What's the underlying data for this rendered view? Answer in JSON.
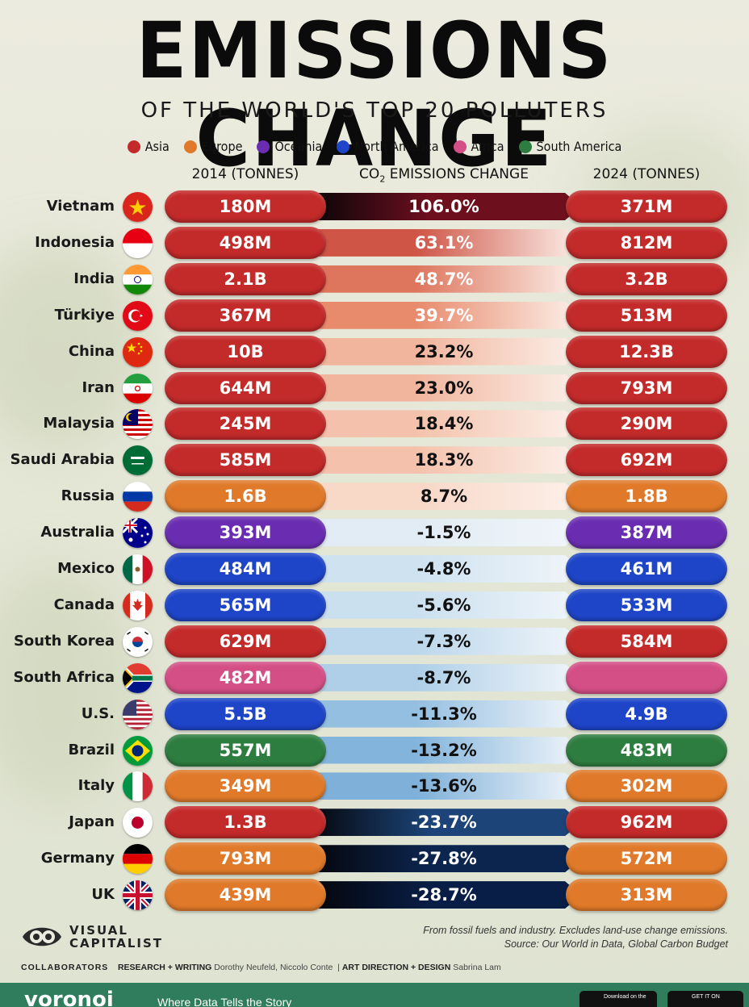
{
  "title": "EMISSIONS CHANGE",
  "subtitle": "OF THE WORLD'S TOP 20 POLLUTERS",
  "legend": [
    {
      "label": "Asia",
      "color": "#c32a2a"
    },
    {
      "label": "Europe",
      "color": "#e07a2a"
    },
    {
      "label": "Oceania",
      "color": "#6a2db1"
    },
    {
      "label": "North America",
      "color": "#1e45c8"
    },
    {
      "label": "Africa",
      "color": "#d44f86"
    },
    {
      "label": "South America",
      "color": "#2e7d40"
    }
  ],
  "headers": {
    "left": "2014 (TONNES)",
    "center_prefix": "CO",
    "center_sub": "2",
    "center_suffix": " EMISSIONS CHANGE",
    "right": "2024 (TONNES)"
  },
  "chart_data": {
    "type": "table",
    "columns": [
      "Country",
      "2014 (TONNES)",
      "CO2 EMISSIONS CHANGE",
      "2024 (TONNES)"
    ],
    "rows": [
      {
        "country": "Vietnam",
        "region": "Asia",
        "e2014": "180M",
        "change": "106.0%",
        "change_value": 106.0,
        "e2024": "371M"
      },
      {
        "country": "Indonesia",
        "region": "Asia",
        "e2014": "498M",
        "change": "63.1%",
        "change_value": 63.1,
        "e2024": "812M"
      },
      {
        "country": "India",
        "region": "Asia",
        "e2014": "2.1B",
        "change": "48.7%",
        "change_value": 48.7,
        "e2024": "3.2B"
      },
      {
        "country": "Türkiye",
        "region": "Asia",
        "e2014": "367M",
        "change": "39.7%",
        "change_value": 39.7,
        "e2024": "513M"
      },
      {
        "country": "China",
        "region": "Asia",
        "e2014": "10B",
        "change": "23.2%",
        "change_value": 23.2,
        "e2024": "12.3B"
      },
      {
        "country": "Iran",
        "region": "Asia",
        "e2014": "644M",
        "change": "23.0%",
        "change_value": 23.0,
        "e2024": "793M"
      },
      {
        "country": "Malaysia",
        "region": "Asia",
        "e2014": "245M",
        "change": "18.4%",
        "change_value": 18.4,
        "e2024": "290M"
      },
      {
        "country": "Saudi Arabia",
        "region": "Asia",
        "e2014": "585M",
        "change": "18.3%",
        "change_value": 18.3,
        "e2024": "692M"
      },
      {
        "country": "Russia",
        "region": "Europe",
        "e2014": "1.6B",
        "change": "8.7%",
        "change_value": 8.7,
        "e2024": "1.8B"
      },
      {
        "country": "Australia",
        "region": "Oceania",
        "e2014": "393M",
        "change": "-1.5%",
        "change_value": -1.5,
        "e2024": "387M"
      },
      {
        "country": "Mexico",
        "region": "North America",
        "e2014": "484M",
        "change": "-4.8%",
        "change_value": -4.8,
        "e2024": "461M"
      },
      {
        "country": "Canada",
        "region": "North America",
        "e2014": "565M",
        "change": "-5.6%",
        "change_value": -5.6,
        "e2024": "533M"
      },
      {
        "country": "South Korea",
        "region": "Asia",
        "e2014": "629M",
        "change": "-7.3%",
        "change_value": -7.3,
        "e2024": "584M"
      },
      {
        "country": "South Africa",
        "region": "Africa",
        "e2014": "482M",
        "change": "-8.7%",
        "change_value": -8.7,
        "e2024": ""
      },
      {
        "country": "U.S.",
        "region": "North America",
        "e2014": "5.5B",
        "change": "-11.3%",
        "change_value": -11.3,
        "e2024": "4.9B"
      },
      {
        "country": "Brazil",
        "region": "South America",
        "e2014": "557M",
        "change": "-13.2%",
        "change_value": -13.2,
        "e2024": "483M"
      },
      {
        "country": "Italy",
        "region": "Europe",
        "e2014": "349M",
        "change": "-13.6%",
        "change_value": -13.6,
        "e2024": "302M"
      },
      {
        "country": "Japan",
        "region": "Asia",
        "e2014": "1.3B",
        "change": "-23.7%",
        "change_value": -23.7,
        "e2024": "962M"
      },
      {
        "country": "Germany",
        "region": "Europe",
        "e2014": "793M",
        "change": "-27.8%",
        "change_value": -27.8,
        "e2024": "572M"
      },
      {
        "country": "UK",
        "region": "Europe",
        "e2014": "439M",
        "change": "-28.7%",
        "change_value": -28.7,
        "e2024": "313M"
      }
    ]
  },
  "footnote": {
    "line1": "From fossil fuels and industry. Excludes land-use change emissions.",
    "line2": "Source: Our World in Data, Global Carbon Budget"
  },
  "logo": {
    "line1": "VISUAL",
    "line2": "CAPITALIST"
  },
  "credits": {
    "collaborators": "COLLABORATORS",
    "research_label": "RESEARCH + WRITING",
    "research_names": "Dorothy Neufeld, Niccolo Conte",
    "design_label": "ART DIRECTION + DESIGN",
    "design_names": "Sabrina Lam"
  },
  "bottom_bar": {
    "brand": "voronoi",
    "tagline": "Where Data Tells the Story",
    "app_store": "Download on the",
    "google_play": "GET IT ON"
  }
}
